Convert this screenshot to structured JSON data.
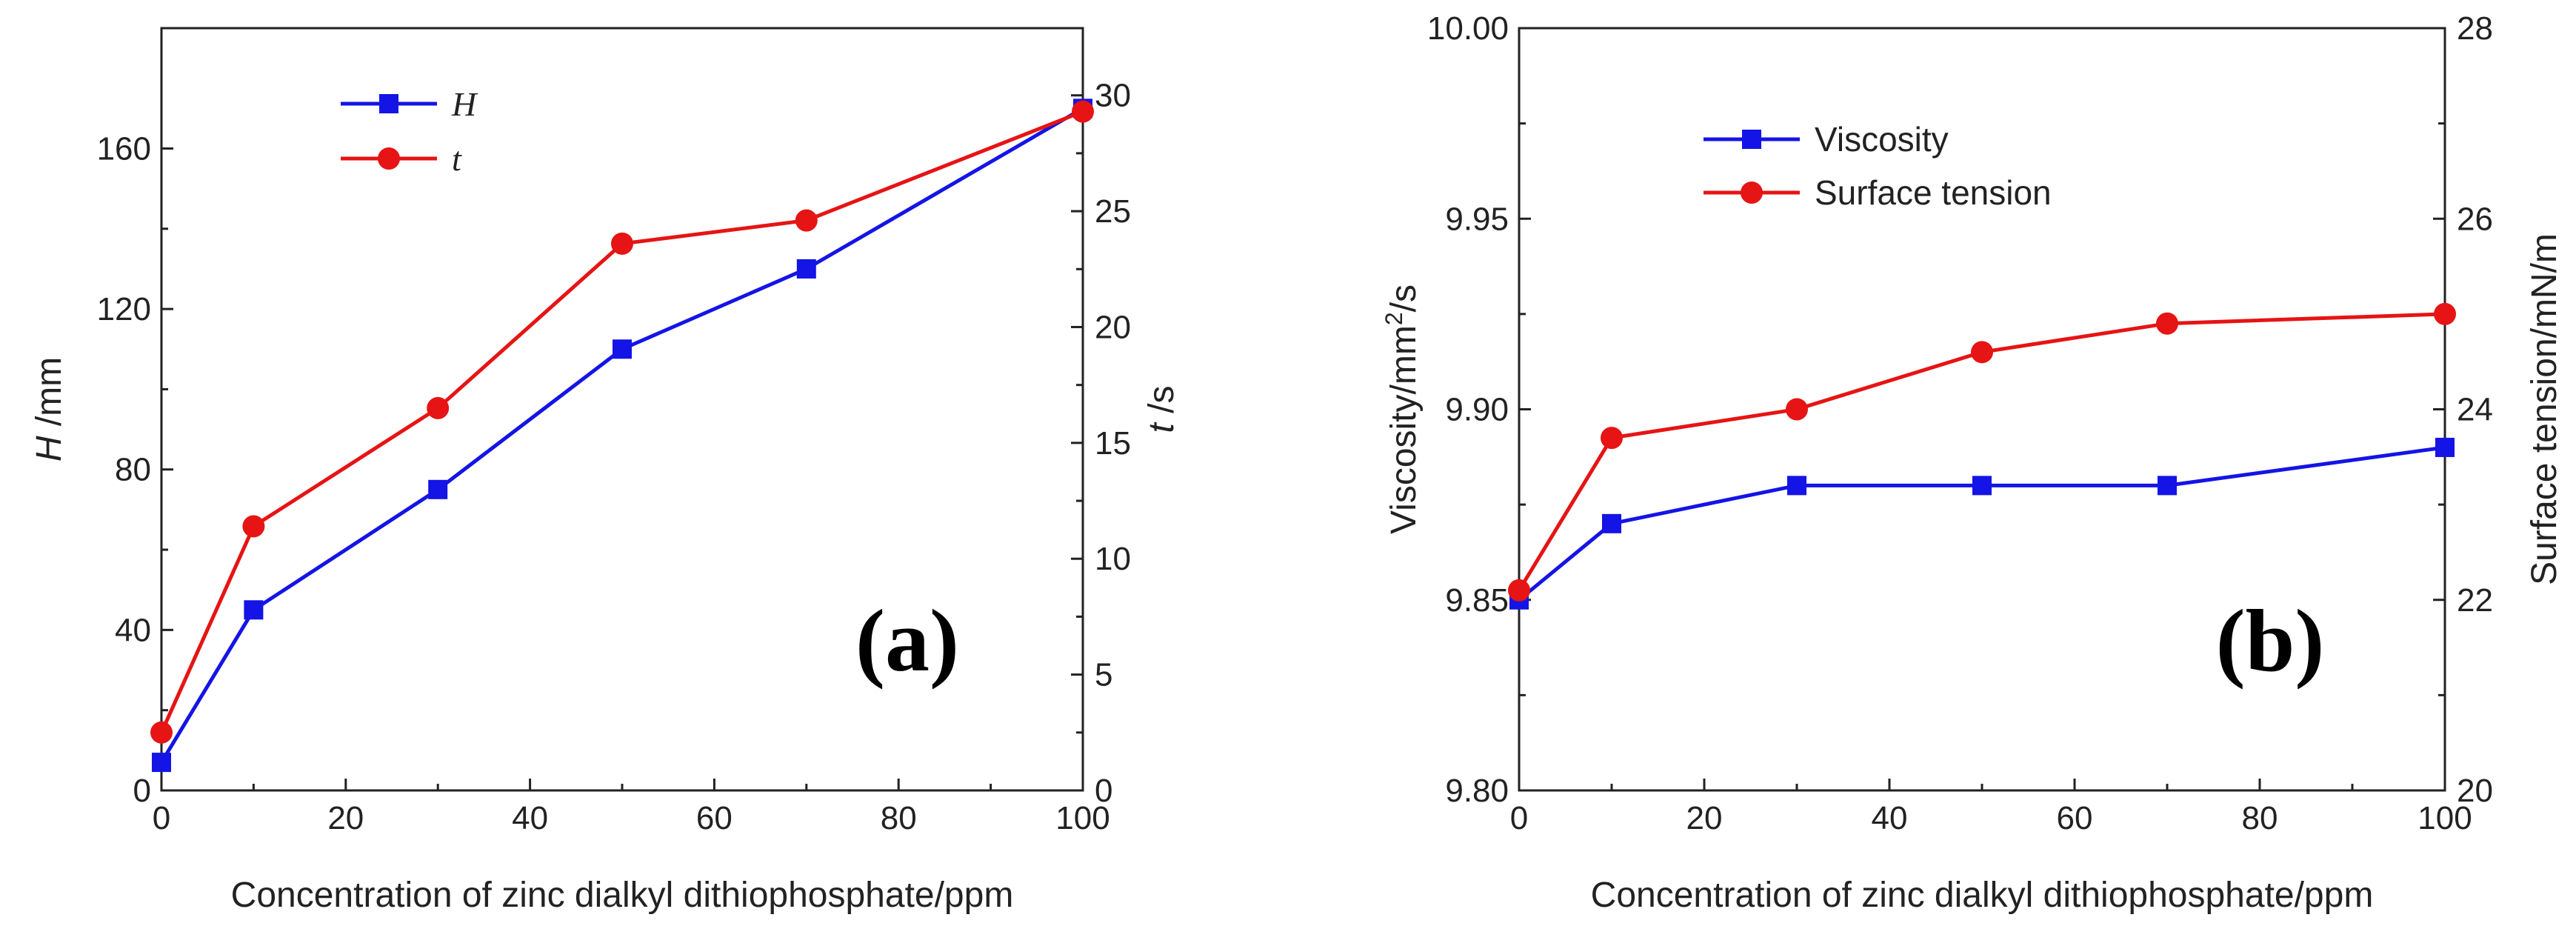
{
  "chart_data": [
    {
      "type": "line",
      "panel_label": "(a)",
      "xlabel": "Concentration of zinc dialkyl dithiophosphate/ppm",
      "ylabel": {
        "italic": "H",
        "rest": " /mm"
      },
      "y2label": {
        "italic": "t",
        "rest": " /s"
      },
      "xlim": [
        0,
        100
      ],
      "ylim": [
        0,
        190
      ],
      "y2lim": [
        0,
        32.9
      ],
      "xticks": [
        0,
        20,
        40,
        60,
        80,
        100
      ],
      "yticks": [
        0,
        40,
        80,
        120,
        160
      ],
      "y2ticks": [
        0,
        5,
        10,
        15,
        20,
        25,
        30
      ],
      "grid": false,
      "legend_position": "top-left",
      "series": [
        {
          "name": "H",
          "axis": "left",
          "marker": "square",
          "color": "#1414e6",
          "x": [
            0,
            10,
            30,
            50,
            70,
            100
          ],
          "y": [
            7,
            45,
            75,
            110,
            130,
            170
          ]
        },
        {
          "name": "t",
          "axis": "right",
          "marker": "circle",
          "color": "#e61414",
          "x": [
            0,
            10,
            30,
            50,
            70,
            100
          ],
          "y": [
            2.5,
            11.4,
            16.5,
            23.6,
            24.6,
            29.3
          ]
        }
      ]
    },
    {
      "type": "line",
      "panel_label": "(b)",
      "xlabel": "Concentration of zinc dialkyl dithiophosphate/ppm",
      "ylabel": {
        "text": "Viscosity/mm",
        "sup": "2",
        "after": "/s"
      },
      "y2label": {
        "text": "Surface tension/mN/m"
      },
      "xlim": [
        0,
        100
      ],
      "ylim": [
        9.8,
        10.0
      ],
      "y2lim": [
        20,
        28
      ],
      "xticks": [
        0,
        20,
        40,
        60,
        80,
        100
      ],
      "yticks": [
        "9.80",
        "9.85",
        "9.90",
        "9.95",
        "10.00"
      ],
      "y2ticks": [
        20,
        22,
        24,
        26,
        28
      ],
      "grid": false,
      "legend_position": "top-left",
      "series": [
        {
          "name": "Viscosity",
          "axis": "left",
          "marker": "square",
          "color": "#1414e6",
          "x": [
            0,
            10,
            30,
            50,
            70,
            100
          ],
          "y": [
            9.85,
            9.87,
            9.88,
            9.88,
            9.88,
            9.89
          ]
        },
        {
          "name": "Surface tension",
          "axis": "right",
          "marker": "circle",
          "color": "#e61414",
          "x": [
            0,
            10,
            30,
            50,
            70,
            100
          ],
          "y": [
            22.1,
            23.7,
            24.0,
            24.6,
            24.9,
            25.0
          ]
        }
      ]
    }
  ]
}
